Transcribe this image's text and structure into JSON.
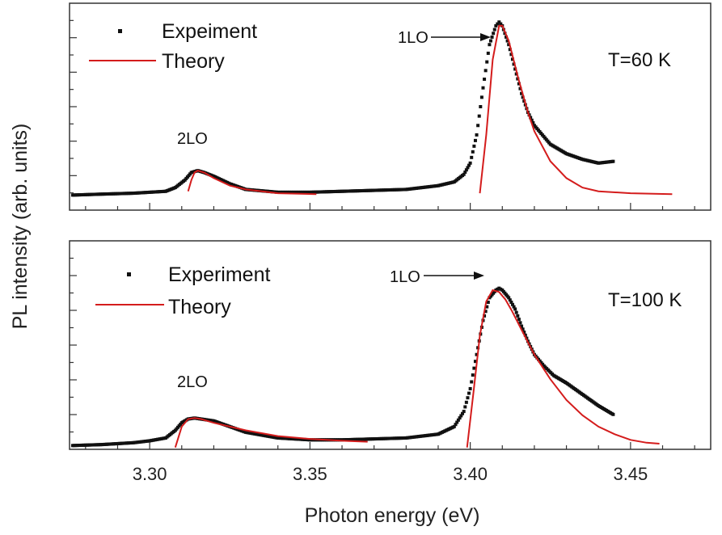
{
  "chart_data": {
    "type": "line",
    "xlabel": "Photon energy (eV)",
    "ylabel": "PL intensity (arb. units)",
    "xlim": [
      3.275,
      3.475
    ],
    "x_ticks": [
      "3.30",
      "3.35",
      "3.40",
      "3.45"
    ],
    "x_tick_values": [
      3.3,
      3.35,
      3.4,
      3.45
    ],
    "colors": {
      "experiment": "#111111",
      "theory": "#d41c1c",
      "axis": "#333333"
    },
    "panels": [
      {
        "temperature_label": "T=60 K",
        "ylim": [
          0,
          1.1
        ],
        "legend": {
          "experiment": "Expeiment",
          "theory": "Theory",
          "placement": "top-left"
        },
        "annotations": [
          {
            "text": "2LO",
            "x": 3.315,
            "y": 0.21
          },
          {
            "text": "1LO",
            "x": 3.409,
            "y": 1.0,
            "arrow": true
          }
        ],
        "series": [
          {
            "name": "Expeiment",
            "style": "markers",
            "x": [
              3.276,
              3.285,
              3.295,
              3.3,
              3.305,
              3.308,
              3.311,
              3.313,
              3.315,
              3.317,
              3.32,
              3.325,
              3.33,
              3.34,
              3.35,
              3.36,
              3.37,
              3.38,
              3.39,
              3.395,
              3.398,
              3.4,
              3.402,
              3.404,
              3.406,
              3.408,
              3.409,
              3.41,
              3.412,
              3.414,
              3.416,
              3.418,
              3.42,
              3.425,
              3.43,
              3.435,
              3.44,
              3.445
            ],
            "y": [
              0.08,
              0.085,
              0.09,
              0.095,
              0.1,
              0.12,
              0.16,
              0.2,
              0.21,
              0.2,
              0.18,
              0.14,
              0.11,
              0.095,
              0.095,
              0.1,
              0.105,
              0.11,
              0.13,
              0.15,
              0.19,
              0.25,
              0.4,
              0.65,
              0.88,
              0.98,
              1.0,
              0.98,
              0.88,
              0.75,
              0.62,
              0.52,
              0.45,
              0.35,
              0.3,
              0.27,
              0.25,
              0.26
            ]
          },
          {
            "name": "Theory",
            "style": "line",
            "x": [
              3.312,
              3.313,
              3.314,
              3.315,
              3.317,
              3.32,
              3.325,
              3.33,
              3.34,
              3.352
            ],
            "y": [
              0.1,
              0.16,
              0.2,
              0.21,
              0.2,
              0.17,
              0.13,
              0.11,
              0.09,
              0.085
            ]
          },
          {
            "name": "Theory",
            "style": "line",
            "x": [
              3.403,
              3.405,
              3.407,
              3.409,
              3.41,
              3.412,
              3.415,
              3.418,
              3.42,
              3.425,
              3.43,
              3.435,
              3.44,
              3.45,
              3.463
            ],
            "y": [
              0.09,
              0.4,
              0.8,
              0.98,
              0.98,
              0.9,
              0.7,
              0.52,
              0.42,
              0.26,
              0.17,
              0.12,
              0.1,
              0.09,
              0.085
            ]
          }
        ]
      },
      {
        "temperature_label": "T=100 K",
        "ylim": [
          0,
          1.1
        ],
        "legend": {
          "experiment": "Experiment",
          "theory": "Theory",
          "placement": "top-left"
        },
        "annotations": [
          {
            "text": "2LO",
            "x": 3.314,
            "y": 0.17
          },
          {
            "text": "1LO",
            "x": 3.408,
            "y": 0.85,
            "arrow": true
          }
        ],
        "series": [
          {
            "name": "Experiment",
            "style": "markers",
            "x": [
              3.276,
              3.285,
              3.295,
              3.3,
              3.305,
              3.308,
              3.31,
              3.312,
              3.314,
              3.316,
              3.32,
              3.325,
              3.33,
              3.34,
              3.35,
              3.36,
              3.37,
              3.38,
              3.39,
              3.395,
              3.398,
              3.4,
              3.402,
              3.404,
              3.406,
              3.408,
              3.409,
              3.41,
              3.412,
              3.414,
              3.416,
              3.418,
              3.42,
              3.423,
              3.426,
              3.43,
              3.435,
              3.44,
              3.445
            ],
            "y": [
              0.02,
              0.025,
              0.035,
              0.045,
              0.06,
              0.1,
              0.14,
              0.16,
              0.165,
              0.16,
              0.15,
              0.12,
              0.09,
              0.06,
              0.05,
              0.05,
              0.055,
              0.06,
              0.08,
              0.12,
              0.2,
              0.32,
              0.5,
              0.68,
              0.8,
              0.84,
              0.85,
              0.84,
              0.8,
              0.74,
              0.65,
              0.57,
              0.5,
              0.44,
              0.39,
              0.35,
              0.29,
              0.23,
              0.18
            ]
          },
          {
            "name": "Theory",
            "style": "line",
            "x": [
              3.308,
              3.31,
              3.312,
              3.314,
              3.316,
              3.32,
              3.33,
              3.34,
              3.35,
              3.36,
              3.368
            ],
            "y": [
              0.01,
              0.12,
              0.16,
              0.165,
              0.16,
              0.14,
              0.1,
              0.07,
              0.055,
              0.045,
              0.04
            ]
          },
          {
            "name": "Theory",
            "style": "line",
            "x": [
              3.399,
              3.401,
              3.403,
              3.405,
              3.407,
              3.409,
              3.411,
              3.413,
              3.416,
              3.42,
              3.425,
              3.43,
              3.435,
              3.44,
              3.445,
              3.45,
              3.455,
              3.459
            ],
            "y": [
              0.01,
              0.3,
              0.6,
              0.78,
              0.84,
              0.83,
              0.79,
              0.73,
              0.63,
              0.5,
              0.37,
              0.26,
              0.18,
              0.12,
              0.08,
              0.05,
              0.035,
              0.03
            ]
          }
        ]
      }
    ]
  }
}
